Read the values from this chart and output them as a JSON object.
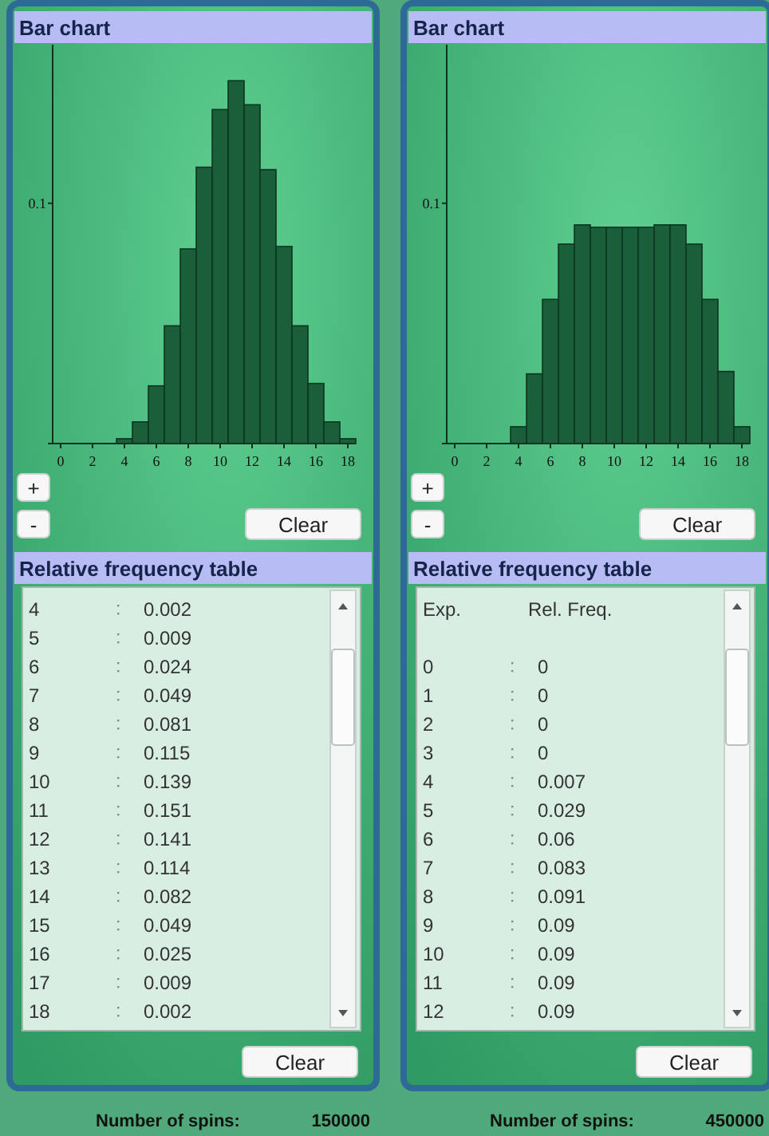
{
  "chart_data": [
    {
      "type": "bar",
      "title": "Bar chart",
      "color": "#1b5e3a",
      "x": [
        0,
        1,
        2,
        3,
        4,
        5,
        6,
        7,
        8,
        9,
        10,
        11,
        12,
        13,
        14,
        15,
        16,
        17,
        18
      ],
      "values": [
        0,
        0,
        0,
        0,
        0.002,
        0.009,
        0.024,
        0.049,
        0.081,
        0.115,
        0.139,
        0.151,
        0.141,
        0.114,
        0.082,
        0.049,
        0.025,
        0.009,
        0.002
      ],
      "xlim": [
        -0.5,
        18.5
      ],
      "xticks": [
        0,
        2,
        4,
        6,
        8,
        10,
        12,
        14,
        16,
        18
      ],
      "ylim": [
        0,
        0.166
      ],
      "yticks": [
        {
          "value": 0,
          "label": null
        },
        0.1
      ],
      "annotations": [
        "+",
        "-",
        "Clear"
      ]
    },
    {
      "type": "heatmap",
      "title": "Relative frequency table",
      "categories": [
        null
      ],
      "y_categories": [
        "4",
        "5",
        "6",
        "7",
        "8",
        "9",
        "10",
        "11",
        "12",
        "13",
        "14",
        "15",
        "16",
        "17",
        "18"
      ],
      "cells": [
        [
          0.002
        ],
        [
          0.009
        ],
        [
          0.024
        ],
        [
          0.049
        ],
        [
          0.081
        ],
        [
          0.115
        ],
        [
          0.139
        ],
        [
          0.151
        ],
        [
          0.141
        ],
        [
          0.114
        ],
        [
          0.082
        ],
        [
          0.049
        ],
        [
          0.025
        ],
        [
          0.009
        ],
        [
          0.002
        ]
      ],
      "data_labels": true,
      "annotations": [
        "Clear",
        "Number of spins:",
        "150000"
      ]
    },
    {
      "type": "bar",
      "title": "Bar chart",
      "color": "#1b5e3a",
      "x": [
        0,
        1,
        2,
        3,
        4,
        5,
        6,
        7,
        8,
        9,
        10,
        11,
        12,
        13,
        14,
        15,
        16,
        17,
        18
      ],
      "values": [
        0,
        0,
        0,
        0,
        0.007,
        0.029,
        0.06,
        0.083,
        0.091,
        0.09,
        0.09,
        0.09,
        0.09,
        0.091,
        0.091,
        0.083,
        0.06,
        0.03,
        0.007
      ],
      "xlim": [
        -0.5,
        18.5
      ],
      "xticks": [
        0,
        2,
        4,
        6,
        8,
        10,
        12,
        14,
        16,
        18
      ],
      "ylim": [
        0,
        0.166
      ],
      "yticks": [
        {
          "value": 0,
          "label": null
        },
        0.1
      ],
      "annotations": [
        "+",
        "-",
        "Clear"
      ]
    },
    {
      "type": "heatmap",
      "title": "Relative frequency table",
      "ylabel": "Exp.",
      "categories": [
        "Rel. Freq."
      ],
      "y_categories": [
        "0",
        "1",
        "2",
        "3",
        "4",
        "5",
        "6",
        "7",
        "8",
        "9",
        "10",
        "11",
        "12"
      ],
      "cells": [
        [
          0
        ],
        [
          0
        ],
        [
          0
        ],
        [
          0
        ],
        [
          0.007
        ],
        [
          0.029
        ],
        [
          0.06
        ],
        [
          0.083
        ],
        [
          0.091
        ],
        [
          0.09
        ],
        [
          0.09
        ],
        [
          0.09
        ],
        [
          0.09
        ]
      ],
      "data_labels": true,
      "annotations": [
        "Clear",
        "Number of spins:",
        "450000"
      ]
    }
  ]
}
